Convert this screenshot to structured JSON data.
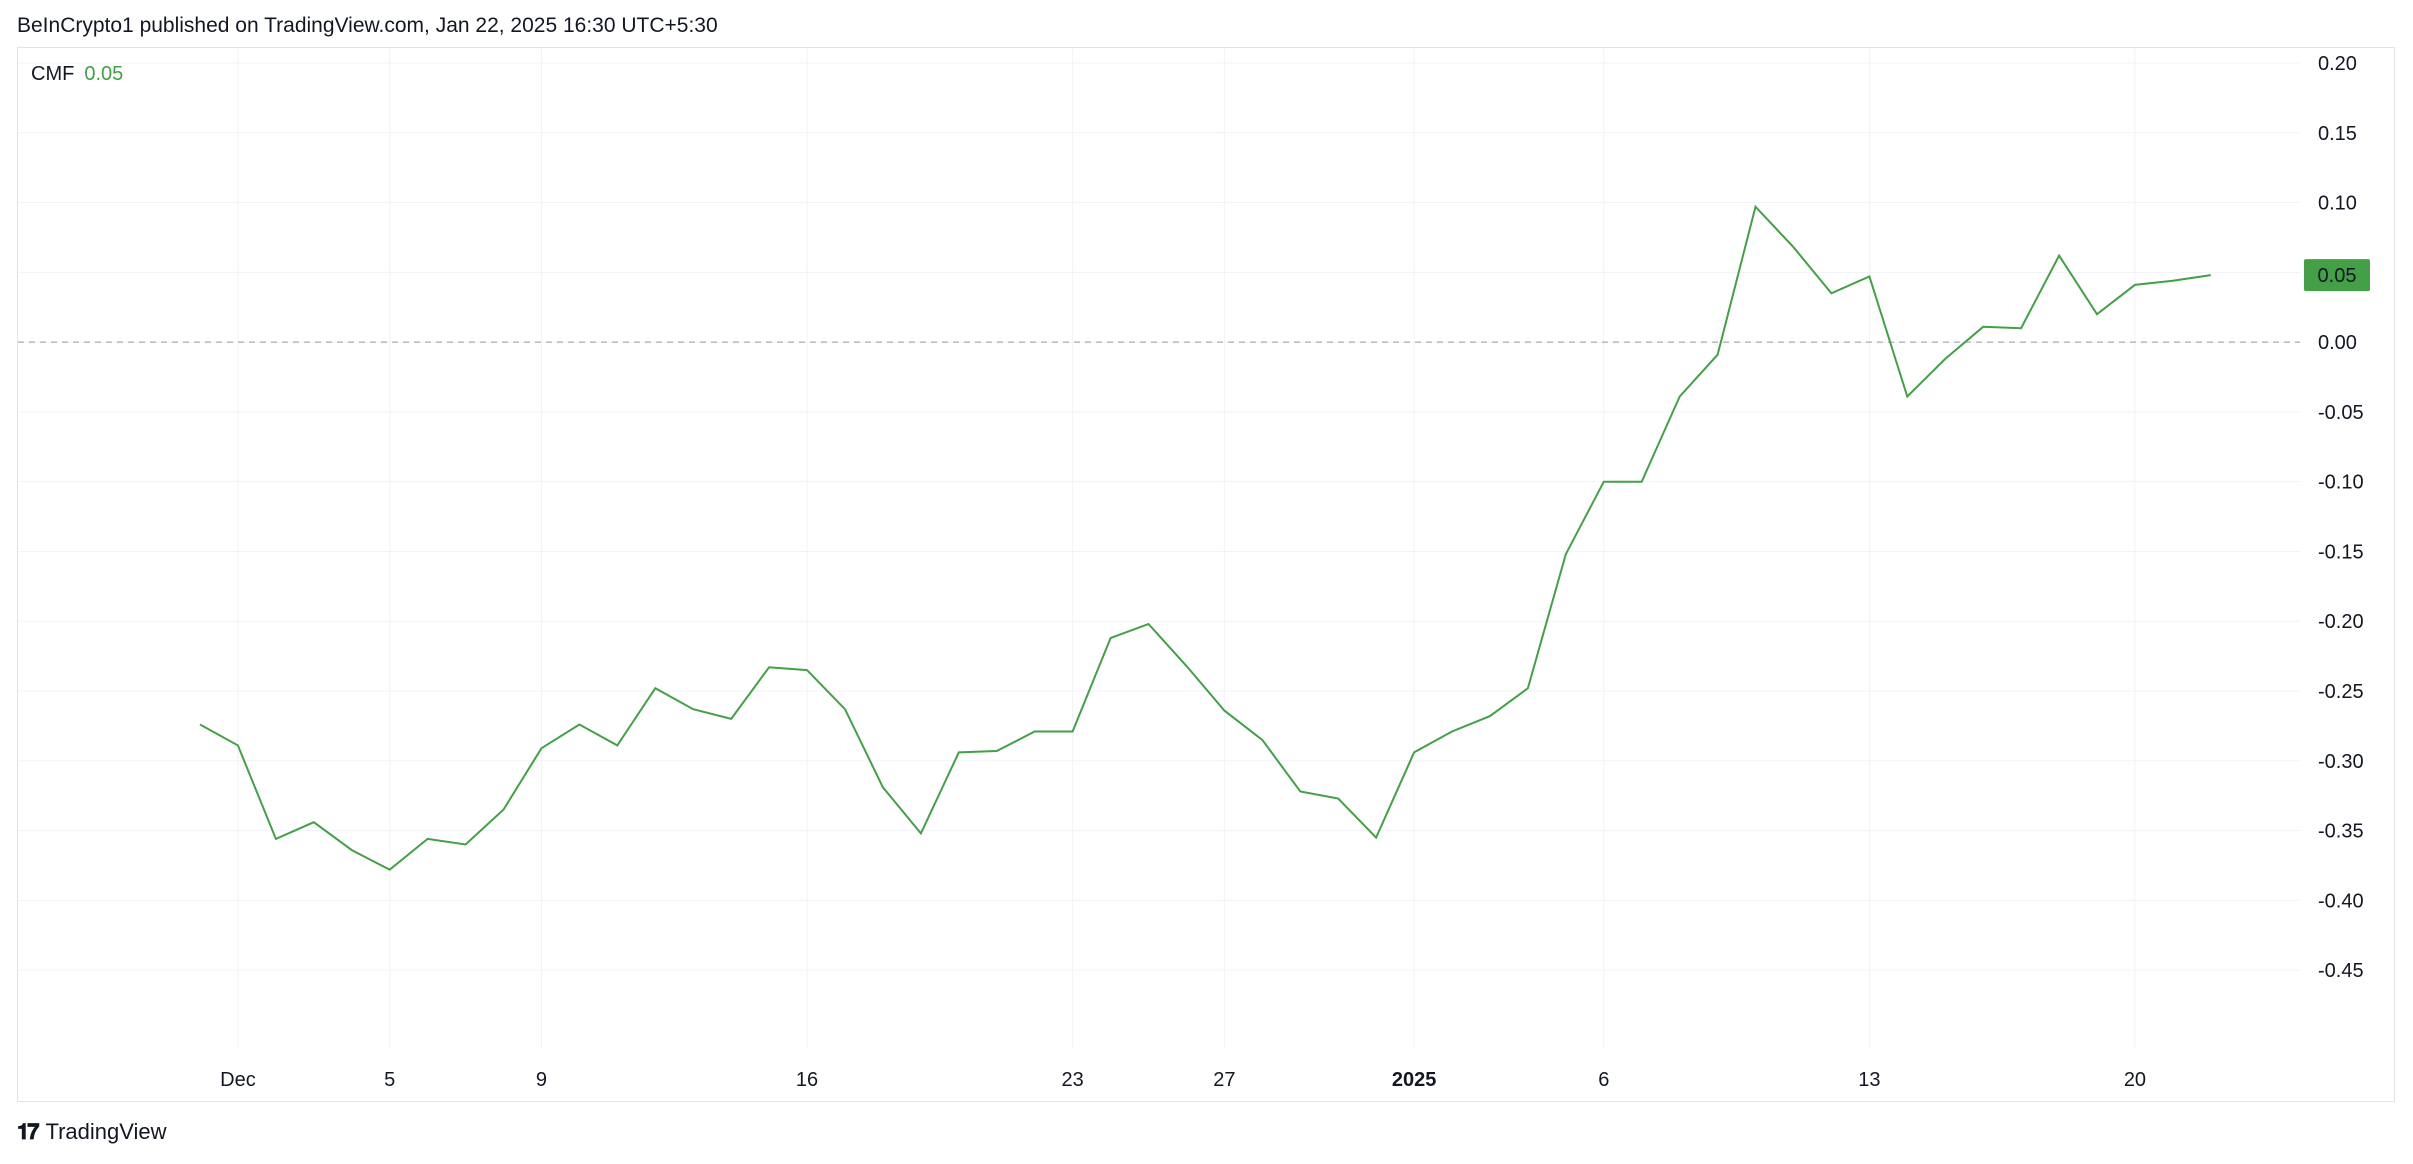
{
  "header": {
    "text": "BeInCrypto1 published on TradingView.com, Jan 22, 2025 16:30 UTC+5:30"
  },
  "legend": {
    "name": "CMF",
    "value": "0.05"
  },
  "footer": {
    "brand": "TradingView"
  },
  "colors": {
    "line": "#43a047",
    "badge_bg": "#43a047",
    "grid": "#f0f3fa",
    "zero_line": "#9598a1",
    "border": "#e0e3eb"
  },
  "chart_data": {
    "type": "line",
    "ylim": [
      -0.48,
      0.2
    ],
    "y_ticks": [
      "0.20",
      "0.15",
      "0.10",
      "0.05",
      "0.00",
      "-0.05",
      "-0.10",
      "-0.15",
      "-0.20",
      "-0.25",
      "-0.30",
      "-0.35",
      "-0.40",
      "-0.45"
    ],
    "x_ticks": [
      {
        "label": "Dec",
        "bold": false,
        "index": 1
      },
      {
        "label": "5",
        "bold": false,
        "index": 5
      },
      {
        "label": "9",
        "bold": false,
        "index": 9
      },
      {
        "label": "16",
        "bold": false,
        "index": 16
      },
      {
        "label": "23",
        "bold": false,
        "index": 23
      },
      {
        "label": "27",
        "bold": false,
        "index": 27
      },
      {
        "label": "2025",
        "bold": true,
        "index": 32
      },
      {
        "label": "6",
        "bold": false,
        "index": 37
      },
      {
        "label": "13",
        "bold": false,
        "index": 44
      },
      {
        "label": "20",
        "bold": false,
        "index": 51
      }
    ],
    "x_start_index": -5,
    "last_value_badge": "0.05",
    "series": [
      {
        "values": [
          -0.274,
          -0.289,
          -0.356,
          -0.344,
          -0.364,
          -0.378,
          -0.356,
          -0.36,
          -0.335,
          -0.291,
          -0.274,
          -0.289,
          -0.248,
          -0.263,
          -0.27,
          -0.233,
          -0.235,
          -0.263,
          -0.319,
          -0.352,
          -0.294,
          -0.293,
          -0.279,
          -0.279,
          -0.212,
          -0.202,
          -0.232,
          -0.264,
          -0.285,
          -0.322,
          -0.327,
          -0.355,
          -0.294,
          -0.279,
          -0.268,
          -0.248,
          -0.152,
          -0.1,
          -0.1,
          -0.039,
          -0.009,
          0.097,
          0.068,
          0.035,
          0.047,
          -0.039,
          -0.012,
          0.011,
          0.01,
          0.062,
          0.02,
          0.041,
          0.044,
          0.048
        ]
      }
    ]
  }
}
